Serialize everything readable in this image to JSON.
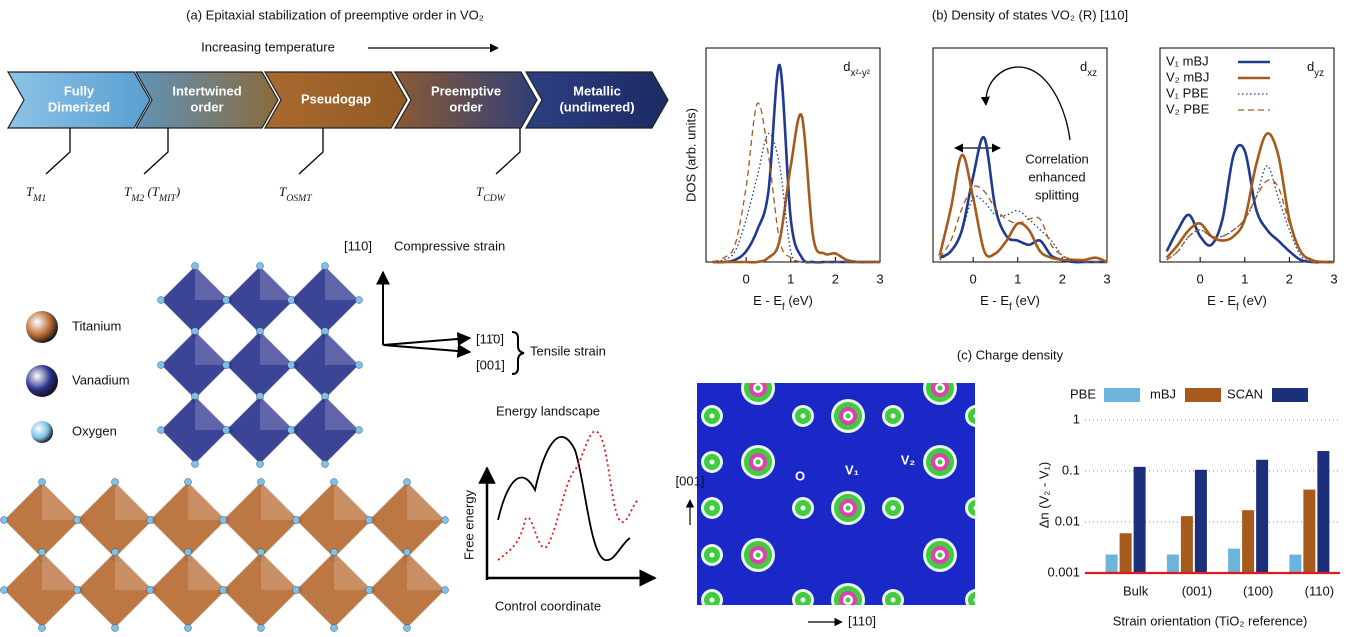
{
  "panel_a": {
    "title": "(a) Epitaxial stabilization of preemptive order in VO₂",
    "temperature_label": "Increasing temperature",
    "phases": [
      {
        "lines": [
          "Fully",
          "Dimerized"
        ],
        "colors": [
          "#8cc3e6",
          "#5a9fd0"
        ]
      },
      {
        "lines": [
          "Intertwined",
          "order"
        ],
        "colors": [
          "#5f93b8",
          "#8a6a3c"
        ]
      },
      {
        "lines": [
          "Pseudogap"
        ],
        "colors": [
          "#a8692e",
          "#935a26"
        ]
      },
      {
        "lines": [
          "Preemptive",
          "order"
        ],
        "colors": [
          "#8a5a35",
          "#2f3f78"
        ]
      },
      {
        "lines": [
          "Metallic",
          "(undimered)"
        ],
        "colors": [
          "#2c3f82",
          "#1c2a63"
        ]
      }
    ],
    "transitions": [
      {
        "base": "T",
        "sub": "M1"
      },
      {
        "base": "T",
        "sub": "M2",
        "note": " (T",
        "note_sub": "MIT",
        "note_end": ")"
      },
      {
        "base": "T",
        "sub": "OSMT"
      },
      {
        "base": "T",
        "sub": "CDW"
      }
    ],
    "strain": {
      "compressive_axis": "[110]",
      "compressive": "Compressive strain",
      "tensile_axes": [
        "[11̄0]",
        "[001]"
      ],
      "tensile": "Tensile strain"
    },
    "atoms": [
      {
        "name": "Titanium",
        "color": "#b5692f"
      },
      {
        "name": "Vanadium",
        "color": "#27308a"
      },
      {
        "name": "Oxygen",
        "color": "#7ec0ea"
      }
    ],
    "energy": {
      "title": "Energy landscape",
      "ylabel": "Free energy",
      "xlabel": "Control coordinate"
    }
  },
  "panel_b": {
    "title": "(b) Density of states VO₂ (R) [110]"
  },
  "panel_c": {
    "title": "(c) Charge density",
    "labels": [
      "O",
      "V₁",
      "V₂"
    ],
    "axes": [
      "[001]",
      "[110]"
    ]
  },
  "chart_data": [
    {
      "type": "line",
      "label": {
        "base": "d",
        "sub": "x²-y²"
      },
      "ylabel": "DOS (arb. units)",
      "xlabel": {
        "base": "E - E",
        "sub": "f",
        "end": " (eV)"
      },
      "x": [
        -0.75,
        -0.5,
        -0.25,
        0,
        0.25,
        0.5,
        0.75,
        1,
        1.25,
        1.5,
        1.75,
        2,
        2.25,
        2.5,
        2.75,
        3
      ],
      "xlim": [
        -0.9,
        3
      ],
      "ylim": [
        0,
        1
      ],
      "xticks": [
        0,
        1,
        2,
        3
      ],
      "series": [
        {
          "color": "#1f3a8f",
          "style": "solid",
          "values": [
            0,
            0,
            0.01,
            0.05,
            0.15,
            0.33,
            0.92,
            0.2,
            0.02,
            0,
            0,
            0,
            0,
            0,
            0,
            0
          ]
        },
        {
          "color": "#a65a1b",
          "style": "solid",
          "values": [
            0,
            0,
            0,
            0,
            0,
            0.02,
            0.1,
            0.45,
            0.68,
            0.12,
            0.04,
            0.04,
            0.01,
            0,
            0,
            0
          ]
        },
        {
          "color": "#1f3a8f",
          "style": "dotted",
          "values": [
            0,
            0.01,
            0.05,
            0.2,
            0.4,
            0.6,
            0.45,
            0.05,
            0,
            0,
            0,
            0,
            0,
            0,
            0,
            0
          ]
        },
        {
          "color": "#a65a1b",
          "style": "dashed",
          "values": [
            0,
            0.02,
            0.08,
            0.35,
            0.74,
            0.5,
            0.1,
            0.02,
            0,
            0,
            0,
            0,
            0,
            0,
            0,
            0
          ]
        }
      ]
    },
    {
      "type": "line",
      "label": {
        "base": "d",
        "sub": "xz"
      },
      "xlabel": {
        "base": "E - E",
        "sub": "f",
        "end": " (eV)"
      },
      "annotation": [
        "Correlation",
        "enhanced",
        "splitting"
      ],
      "x": [
        -0.75,
        -0.5,
        -0.25,
        0,
        0.25,
        0.5,
        0.75,
        1,
        1.25,
        1.5,
        1.75,
        2,
        2.25,
        2.5,
        2.75,
        3
      ],
      "xlim": [
        -0.9,
        3
      ],
      "ylim": [
        0,
        1
      ],
      "xticks": [
        0,
        1,
        2,
        3
      ],
      "series": [
        {
          "color": "#1f3a8f",
          "style": "solid",
          "values": [
            0.02,
            0.05,
            0.15,
            0.4,
            0.58,
            0.25,
            0.12,
            0.1,
            0.08,
            0.1,
            0.03,
            0.01,
            0,
            0,
            0,
            0
          ]
        },
        {
          "color": "#a65a1b",
          "style": "solid",
          "values": [
            0.03,
            0.25,
            0.5,
            0.3,
            0.05,
            0.04,
            0.1,
            0.18,
            0.15,
            0.05,
            0.02,
            0.01,
            0.01,
            0.01,
            0.02,
            0
          ]
        },
        {
          "color": "#1f3a8f",
          "style": "dotted",
          "values": [
            0.01,
            0.05,
            0.15,
            0.3,
            0.28,
            0.22,
            0.22,
            0.24,
            0.2,
            0.15,
            0.1,
            0.03,
            0.01,
            0,
            0,
            0
          ]
        },
        {
          "color": "#a65a1b",
          "style": "dashed",
          "values": [
            0.02,
            0.1,
            0.25,
            0.35,
            0.33,
            0.25,
            0.2,
            0.18,
            0.2,
            0.2,
            0.08,
            0.03,
            0.01,
            0,
            0,
            0
          ]
        }
      ]
    },
    {
      "type": "line",
      "label": {
        "base": "d",
        "sub": "yz"
      },
      "xlabel": {
        "base": "E - E",
        "sub": "f",
        "end": " (eV)"
      },
      "legend": "upper left",
      "x": [
        -0.75,
        -0.5,
        -0.25,
        0,
        0.25,
        0.5,
        0.75,
        1,
        1.25,
        1.5,
        1.75,
        2,
        2.25,
        2.5,
        2.75,
        3
      ],
      "xlim": [
        -0.9,
        3
      ],
      "ylim": [
        0,
        1
      ],
      "xticks": [
        0,
        1,
        2,
        3
      ],
      "series": [
        {
          "name": "V₁ mBJ",
          "color": "#1f3a8f",
          "style": "solid",
          "values": [
            0.05,
            0.15,
            0.22,
            0.12,
            0.08,
            0.2,
            0.5,
            0.52,
            0.25,
            0.15,
            0.1,
            0.05,
            0.01,
            0,
            0,
            0
          ]
        },
        {
          "name": "V₂ mBJ",
          "color": "#a65a1b",
          "style": "solid",
          "values": [
            0.02,
            0.08,
            0.15,
            0.18,
            0.12,
            0.1,
            0.12,
            0.2,
            0.45,
            0.6,
            0.5,
            0.2,
            0.05,
            0.01,
            0,
            0
          ]
        },
        {
          "name": "V₁ PBE",
          "color": "#1f3a8f",
          "style": "dotted",
          "values": [
            0.01,
            0.05,
            0.12,
            0.15,
            0.12,
            0.12,
            0.15,
            0.2,
            0.3,
            0.45,
            0.3,
            0.15,
            0.03,
            0,
            0,
            0
          ]
        },
        {
          "name": "V₂ PBE",
          "color": "#a65a1b",
          "style": "dashed",
          "values": [
            0.01,
            0.05,
            0.12,
            0.15,
            0.12,
            0.12,
            0.15,
            0.2,
            0.3,
            0.38,
            0.35,
            0.18,
            0.05,
            0,
            0,
            0
          ]
        }
      ]
    },
    {
      "type": "bar",
      "ylabel": "Δn (V₂ - V₁)",
      "xlabel": "Strain orientation (TiO₂ reference)",
      "categories": [
        "Bulk",
        "(001)",
        "(100)",
        "(110)"
      ],
      "ylim": [
        0.001,
        1.3
      ],
      "yticks": [
        0.001,
        0.01,
        0.1,
        1
      ],
      "log_y": true,
      "grid": true,
      "axis_color": "#e0191c",
      "legend": "top",
      "series": [
        {
          "name": "PBE",
          "color": "#6cb4dc",
          "values": [
            0.0023,
            0.0023,
            0.003,
            0.0023
          ]
        },
        {
          "name": "mBJ",
          "color": "#a65a1b",
          "values": [
            0.006,
            0.013,
            0.017,
            0.043
          ]
        },
        {
          "name": "SCAN",
          "color": "#1c2f7a",
          "values": [
            0.12,
            0.105,
            0.165,
            0.245
          ]
        }
      ]
    }
  ]
}
